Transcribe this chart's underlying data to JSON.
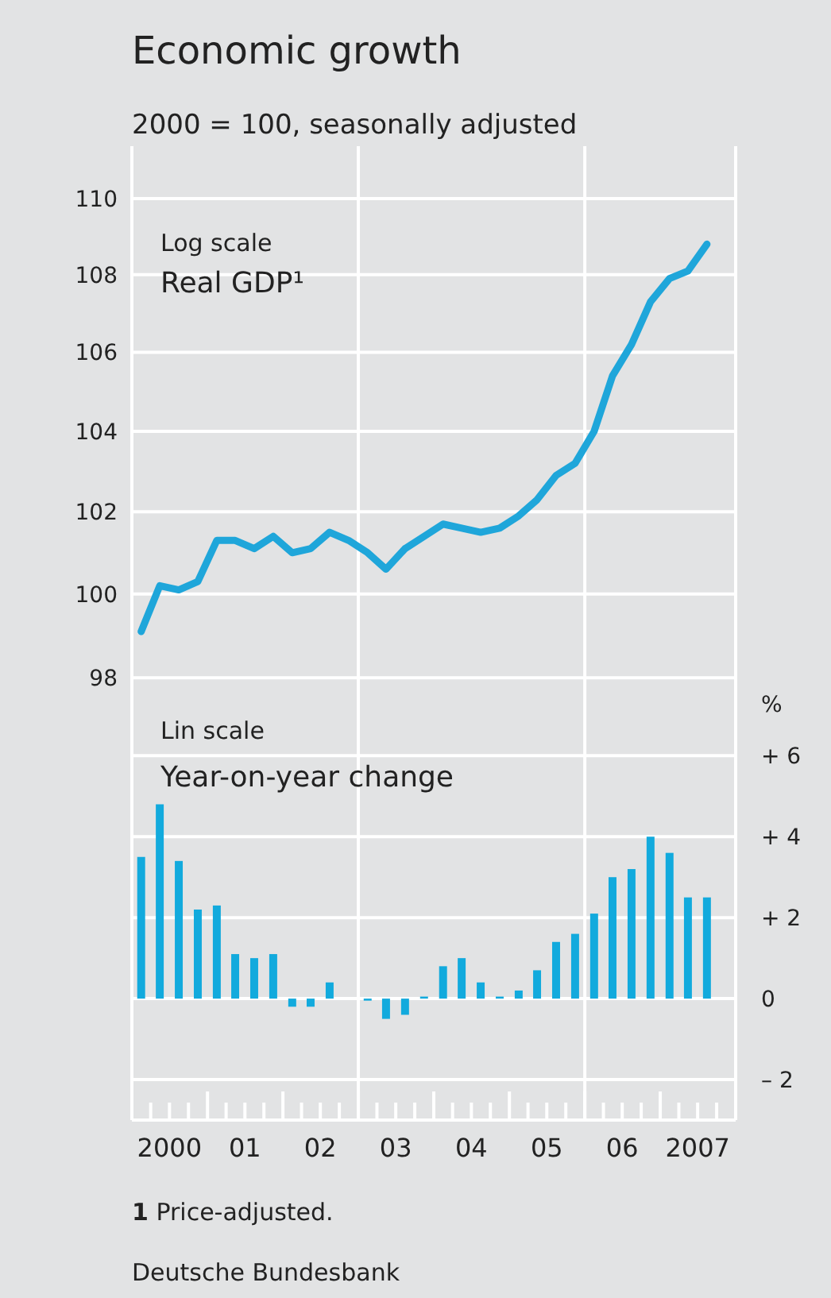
{
  "chart_data": [
    {
      "type": "line",
      "title": "Economic growth",
      "subtitle": "2000 = 100, seasonally adjusted",
      "annotations": [
        "Log scale",
        "Real GDP¹"
      ],
      "log": true,
      "grid": "y",
      "tick_labels": "y",
      "xlim": [
        "2000-01-01",
        "2008-01-01"
      ],
      "ylim": [
        97.5,
        111.4
      ],
      "yticks": [
        98,
        100,
        102,
        104,
        106,
        108,
        110
      ],
      "ref_lines": [
        {
          "axis": "x",
          "value": "2003-01-01",
          "color": "#ffffff"
        },
        {
          "axis": "x",
          "value": "2006-01-01",
          "color": "#ffffff"
        }
      ],
      "series": [
        {
          "color": "#1fa6da",
          "x": [
            "2000-02-15",
            "2000-05-15",
            "2000-08-15",
            "2000-11-15",
            "2001-02-15",
            "2001-05-15",
            "2001-08-15",
            "2001-11-15",
            "2002-02-15",
            "2002-05-15",
            "2002-08-15",
            "2002-11-15",
            "2003-02-15",
            "2003-05-15",
            "2003-08-15",
            "2003-11-15",
            "2004-02-15",
            "2004-05-15",
            "2004-08-15",
            "2004-11-15",
            "2005-02-15",
            "2005-05-15",
            "2005-08-15",
            "2005-11-15",
            "2006-02-15",
            "2006-05-15",
            "2006-08-15",
            "2006-11-15",
            "2007-02-15",
            "2007-05-15",
            "2007-08-15"
          ],
          "values": [
            99.1,
            100.2,
            100.1,
            100.3,
            101.3,
            101.3,
            101.1,
            101.4,
            101.0,
            101.1,
            101.5,
            101.3,
            101.0,
            100.6,
            101.1,
            101.4,
            101.7,
            101.6,
            101.5,
            101.6,
            101.9,
            102.3,
            102.9,
            103.2,
            104.0,
            105.4,
            106.2,
            107.3,
            107.9,
            108.1,
            108.8
          ]
        }
      ]
    },
    {
      "type": "bar",
      "annotations": [
        "Lin scale",
        "Year-on-year change",
        "1 Price-adjusted.",
        "Deutsche Bundesbank"
      ],
      "y2label": "%",
      "grid": "y",
      "xlim": [
        "2000-01-01",
        "2008-01-01"
      ],
      "xticks": [
        {
          "value": "2000-07-01",
          "label": "2000"
        },
        {
          "value": "2001-07-01",
          "label": "01"
        },
        {
          "value": "2002-07-01",
          "label": "02"
        },
        {
          "value": "2003-07-01",
          "label": "03"
        },
        {
          "value": "2004-07-01",
          "label": "04"
        },
        {
          "value": "2005-07-01",
          "label": "05"
        },
        {
          "value": "2006-07-01",
          "label": "06"
        },
        {
          "value": "2007-07-01",
          "label": "2007"
        }
      ],
      "y2lim": [
        -3,
        7.4
      ],
      "y2ticks": [
        {
          "value": 6,
          "label": "+ 6"
        },
        {
          "value": 4,
          "label": "+ 4"
        },
        {
          "value": 2,
          "label": "+ 2"
        },
        0,
        {
          "value": -2,
          "label": "– 2"
        }
      ],
      "ref_lines": [
        {
          "axis": "x",
          "value": "2003-01-01",
          "color": "#ffffff"
        },
        {
          "axis": "x",
          "value": "2006-01-01",
          "color": "#ffffff"
        }
      ],
      "series": [
        {
          "color": "#12aadd",
          "axis": "y2",
          "x": [
            "2000-02-15",
            "2000-05-15",
            "2000-08-15",
            "2000-11-15",
            "2001-02-15",
            "2001-05-15",
            "2001-08-15",
            "2001-11-15",
            "2002-02-15",
            "2002-05-15",
            "2002-08-15",
            "2002-11-15",
            "2003-02-15",
            "2003-05-15",
            "2003-08-15",
            "2003-11-15",
            "2004-02-15",
            "2004-05-15",
            "2004-08-15",
            "2004-11-15",
            "2005-02-15",
            "2005-05-15",
            "2005-08-15",
            "2005-11-15",
            "2006-02-15",
            "2006-05-15",
            "2006-08-15",
            "2006-11-15",
            "2007-02-15",
            "2007-05-15",
            "2007-08-15"
          ],
          "values": [
            3.5,
            4.8,
            3.4,
            2.2,
            2.3,
            1.1,
            1.0,
            1.1,
            -0.2,
            -0.2,
            0.4,
            0.0,
            -0.05,
            -0.5,
            -0.4,
            0.05,
            0.8,
            1.0,
            0.4,
            0.05,
            0.2,
            0.7,
            1.4,
            1.6,
            2.1,
            3.0,
            3.2,
            4.0,
            3.6,
            2.5,
            2.5
          ]
        }
      ]
    }
  ]
}
